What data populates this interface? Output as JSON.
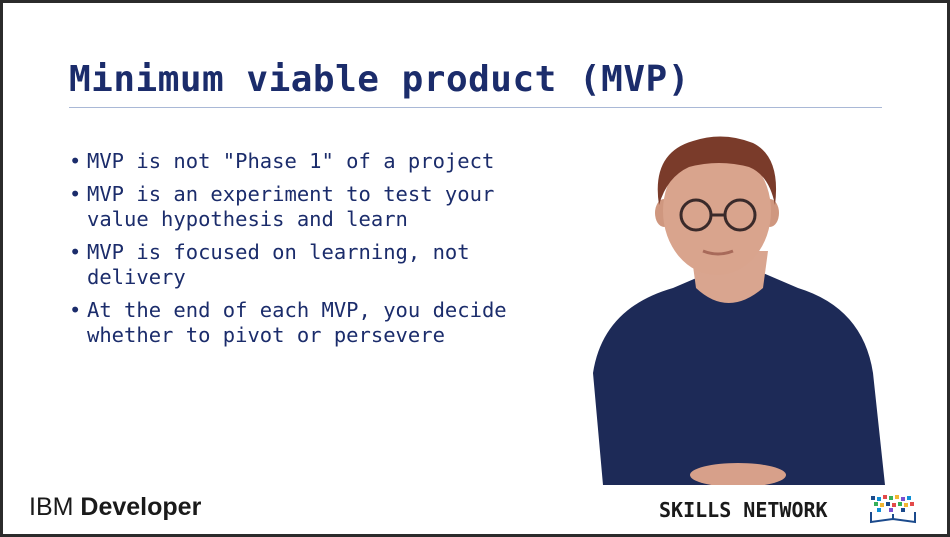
{
  "slide": {
    "title": "Minimum viable product (MVP)",
    "bullets": [
      {
        "lines": [
          "MVP is not \"Phase 1\" of a project"
        ]
      },
      {
        "lines": [
          "MVP is an experiment to test your",
          "value hypothesis and learn"
        ]
      },
      {
        "lines": [
          "MVP is focused on learning, not",
          "delivery"
        ]
      },
      {
        "lines": [
          "At the end of each MVP, you decide",
          "whether to pivot or persevere"
        ]
      }
    ],
    "bullet_glyph": "•"
  },
  "footer": {
    "brand_prefix": "IBM",
    "brand_name": "Developer",
    "skills_network": "SKILLS NETWORK"
  },
  "colors": {
    "title": "#1b2c6b",
    "text": "#1b2c6b",
    "rule": "#a9b8d6",
    "shirt": "#1d2a57"
  }
}
